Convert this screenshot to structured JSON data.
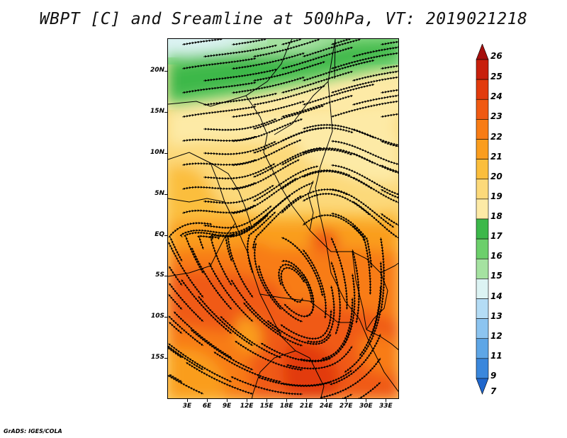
{
  "title": "WBPT [C] and Sreamline at 500hPa, VT: 2019021218",
  "credit": "GrADS: IGES/COLA",
  "map": {
    "lon_range": [
      0,
      35
    ],
    "lat_range": [
      -20,
      24
    ],
    "lat_labels": [
      "20N",
      "15N",
      "10N",
      "5N",
      "EQ",
      "5S",
      "10S",
      "15S"
    ],
    "lat_values": [
      20,
      15,
      10,
      5,
      0,
      -5,
      -10,
      -15
    ],
    "lon_labels": [
      "3E",
      "6E",
      "9E",
      "12E",
      "15E",
      "18E",
      "21E",
      "24E",
      "27E",
      "30E",
      "33E"
    ],
    "lon_values": [
      3,
      6,
      9,
      12,
      15,
      18,
      21,
      24,
      27,
      30,
      33
    ]
  },
  "colorbar": {
    "labels": [
      "26",
      "25",
      "24",
      "23",
      "22",
      "21",
      "20",
      "19",
      "18",
      "17",
      "16",
      "15",
      "14",
      "13",
      "12",
      "11",
      "9",
      "7"
    ],
    "colors": [
      "#a50f0d",
      "#c8200c",
      "#e23b0c",
      "#f05a12",
      "#f87c14",
      "#fa9d1e",
      "#fbbe3c",
      "#fcd97a",
      "#fdeaa6",
      "#3cb84a",
      "#6ccf6b",
      "#a5e2a1",
      "#dcf3f3",
      "#b4dcf5",
      "#8cc4f0",
      "#5ea6e6",
      "#3a87dc",
      "#1f66cc"
    ]
  }
}
